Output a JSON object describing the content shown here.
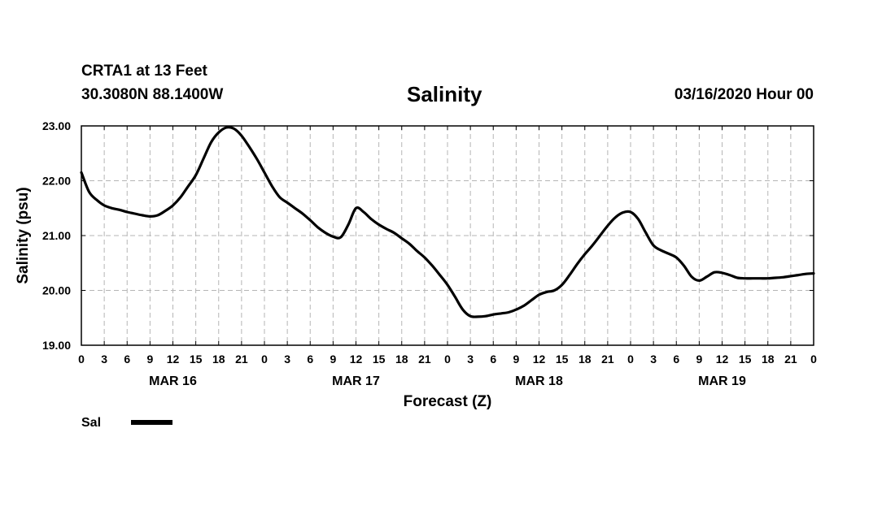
{
  "header": {
    "station": "CRTA1 at 13 Feet",
    "coords": "30.3080N 88.1400W",
    "datetime": "03/16/2020 Hour 00"
  },
  "chart_data": {
    "type": "line",
    "title": "Salinity",
    "xlabel": "Forecast (Z)",
    "ylabel": "Salinity (psu)",
    "ylim": [
      19.0,
      23.0
    ],
    "yticks": [
      "19.00",
      "20.00",
      "21.00",
      "22.00",
      "23.00"
    ],
    "xlim_hours": [
      0,
      96
    ],
    "x_tick_labels": [
      "0",
      "3",
      "6",
      "9",
      "12",
      "15",
      "18",
      "21",
      "0",
      "3",
      "6",
      "9",
      "12",
      "15",
      "18",
      "21",
      "0",
      "3",
      "6",
      "9",
      "12",
      "15",
      "18",
      "21",
      "0",
      "3",
      "6",
      "9",
      "12",
      "15",
      "18",
      "21",
      "0"
    ],
    "day_labels": [
      "MAR 16",
      "MAR 17",
      "MAR 18",
      "MAR 19"
    ],
    "grid": true,
    "legend_position": "bottom-left",
    "series": [
      {
        "name": "Sal",
        "color": "#000000",
        "x": [
          0,
          1,
          2,
          3,
          4,
          5,
          6,
          7,
          8,
          9,
          10,
          11,
          12,
          13,
          14,
          15,
          16,
          17,
          18,
          19,
          20,
          21,
          22,
          23,
          24,
          25,
          26,
          27,
          28,
          29,
          30,
          31,
          32,
          33,
          34,
          35,
          36,
          37,
          38,
          39,
          40,
          41,
          42,
          43,
          44,
          45,
          46,
          47,
          48,
          49,
          50,
          51,
          52,
          53,
          54,
          55,
          56,
          57,
          58,
          59,
          60,
          61,
          62,
          63,
          64,
          65,
          66,
          67,
          68,
          69,
          70,
          71,
          72,
          73,
          74,
          75,
          76,
          77,
          78,
          79,
          80,
          81,
          82,
          83,
          84,
          85,
          86,
          87,
          88,
          89,
          90,
          91,
          92,
          93,
          94,
          95,
          96
        ],
        "y": [
          22.15,
          21.8,
          21.65,
          21.55,
          21.5,
          21.47,
          21.43,
          21.4,
          21.37,
          21.35,
          21.37,
          21.45,
          21.55,
          21.7,
          21.9,
          22.1,
          22.4,
          22.7,
          22.88,
          22.97,
          22.95,
          22.82,
          22.62,
          22.4,
          22.15,
          21.9,
          21.7,
          21.6,
          21.5,
          21.4,
          21.28,
          21.15,
          21.05,
          20.98,
          20.97,
          21.2,
          21.5,
          21.43,
          21.3,
          21.2,
          21.12,
          21.05,
          20.95,
          20.85,
          20.72,
          20.6,
          20.45,
          20.28,
          20.1,
          19.88,
          19.65,
          19.53,
          19.52,
          19.53,
          19.56,
          19.58,
          19.6,
          19.65,
          19.72,
          19.82,
          19.92,
          19.97,
          20.0,
          20.1,
          20.28,
          20.48,
          20.66,
          20.82,
          21.0,
          21.18,
          21.33,
          21.42,
          21.43,
          21.3,
          21.05,
          20.82,
          20.73,
          20.67,
          20.6,
          20.45,
          20.25,
          20.18,
          20.25,
          20.33,
          20.32,
          20.28,
          20.23,
          20.22,
          20.22,
          20.22,
          20.22,
          20.23,
          20.24,
          20.26,
          20.28,
          20.3,
          20.31
        ]
      }
    ]
  }
}
